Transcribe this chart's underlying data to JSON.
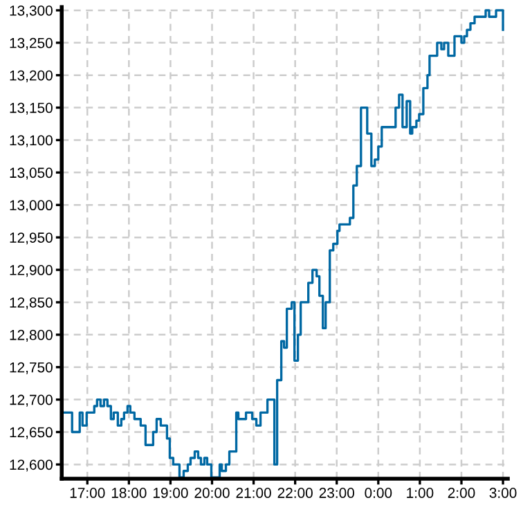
{
  "chart_data": {
    "type": "step",
    "x": [
      "2000-01-01T16:26",
      "2000-01-01T16:38",
      "2000-01-01T16:49",
      "2000-01-01T16:53",
      "2000-01-01T16:59",
      "2000-01-01T17:10",
      "2000-01-01T17:14",
      "2000-01-01T17:19",
      "2000-01-01T17:24",
      "2000-01-01T17:29",
      "2000-01-01T17:34",
      "2000-01-01T17:38",
      "2000-01-01T17:44",
      "2000-01-01T17:49",
      "2000-01-01T17:53",
      "2000-01-01T17:58",
      "2000-01-01T18:02",
      "2000-01-01T18:08",
      "2000-01-01T18:17",
      "2000-01-01T18:24",
      "2000-01-01T18:35",
      "2000-01-01T18:40",
      "2000-01-01T18:46",
      "2000-01-01T18:55",
      "2000-01-01T18:59",
      "2000-01-01T19:04",
      "2000-01-01T19:13",
      "2000-01-01T19:19",
      "2000-01-01T19:25",
      "2000-01-01T19:29",
      "2000-01-01T19:35",
      "2000-01-01T19:40",
      "2000-01-01T19:44",
      "2000-01-01T19:49",
      "2000-01-01T19:53",
      "2000-01-01T19:59",
      "2000-01-01T20:11",
      "2000-01-01T20:14",
      "2000-01-01T20:20",
      "2000-01-01T20:25",
      "2000-01-01T20:35",
      "2000-01-01T20:38",
      "2000-01-01T20:49",
      "2000-01-01T20:58",
      "2000-01-01T21:04",
      "2000-01-01T21:10",
      "2000-01-01T21:20",
      "2000-01-01T21:30",
      "2000-01-01T21:34",
      "2000-01-01T21:40",
      "2000-01-01T21:44",
      "2000-01-01T21:48",
      "2000-01-01T21:55",
      "2000-01-01T21:59",
      "2000-01-01T22:04",
      "2000-01-01T22:08",
      "2000-01-01T22:19",
      "2000-01-01T22:25",
      "2000-01-01T22:31",
      "2000-01-01T22:35",
      "2000-01-01T22:40",
      "2000-01-01T22:44",
      "2000-01-01T22:50",
      "2000-01-01T22:55",
      "2000-01-01T23:01",
      "2000-01-01T23:04",
      "2000-01-01T23:19",
      "2000-01-01T23:24",
      "2000-01-01T23:29",
      "2000-01-01T23:35",
      "2000-01-01T23:44",
      "2000-01-01T23:50",
      "2000-01-01T23:55",
      "2000-01-02T00:00",
      "2000-01-02T00:05",
      "2000-01-02T00:25",
      "2000-01-02T00:30",
      "2000-01-02T00:35",
      "2000-01-02T00:41",
      "2000-01-02T00:46",
      "2000-01-02T00:49",
      "2000-01-02T00:55",
      "2000-01-02T00:59",
      "2000-01-02T01:05",
      "2000-01-02T01:11",
      "2000-01-02T01:14",
      "2000-01-02T01:25",
      "2000-01-02T01:31",
      "2000-01-02T01:35",
      "2000-01-02T01:41",
      "2000-01-02T01:50",
      "2000-01-02T02:00",
      "2000-01-02T02:04",
      "2000-01-02T02:08",
      "2000-01-02T02:13",
      "2000-01-02T02:19",
      "2000-01-02T02:35",
      "2000-01-02T02:40",
      "2000-01-02T02:50",
      "2000-01-02T03:00"
    ],
    "series": [
      {
        "color": "#0068a3",
        "values": [
          12680,
          12650,
          12680,
          12660,
          12680,
          12690,
          12700,
          12690,
          12700,
          12690,
          12670,
          12680,
          12660,
          12670,
          12680,
          12690,
          12680,
          12670,
          12660,
          12630,
          12650,
          12670,
          12660,
          12640,
          12610,
          12600,
          12580,
          12590,
          12600,
          12610,
          12620,
          12610,
          12600,
          12610,
          12600,
          12580,
          12600,
          12590,
          12600,
          12620,
          12680,
          12670,
          12680,
          12670,
          12660,
          12680,
          12700,
          12600,
          12730,
          12790,
          12780,
          12840,
          12850,
          12760,
          12800,
          12850,
          12880,
          12900,
          12890,
          12860,
          12810,
          12850,
          12930,
          12940,
          12960,
          12970,
          12980,
          13030,
          13060,
          13150,
          13110,
          13060,
          13070,
          13090,
          13120,
          13150,
          13170,
          13120,
          13160,
          13110,
          13120,
          13130,
          13140,
          13180,
          13200,
          13230,
          13250,
          13240,
          13250,
          13230,
          13260,
          13250,
          13260,
          13270,
          13280,
          13290,
          13300,
          13290,
          13300,
          13270
        ]
      }
    ],
    "xlim": [
      "2000-01-01T16:23",
      "2000-01-02T03:07"
    ],
    "xticks": [
      {
        "value": "2000-01-01T17:00",
        "label": "17:00"
      },
      {
        "value": "2000-01-01T18:00",
        "label": "18:00"
      },
      {
        "value": "2000-01-01T19:00",
        "label": "19:00"
      },
      {
        "value": "2000-01-01T20:00",
        "label": "20:00"
      },
      {
        "value": "2000-01-01T21:00",
        "label": "21:00"
      },
      {
        "value": "2000-01-01T22:00",
        "label": "22:00"
      },
      {
        "value": "2000-01-01T23:00",
        "label": "23:00"
      },
      {
        "value": "2000-01-02T00:00",
        "label": "0:00"
      },
      {
        "value": "2000-01-02T01:00",
        "label": "1:00"
      },
      {
        "value": "2000-01-02T02:00",
        "label": "2:00"
      },
      {
        "value": "2000-01-02T03:00",
        "label": "3:00"
      }
    ],
    "ylim": [
      12578,
      13305
    ],
    "yticks": [
      {
        "value": 12600,
        "label": "12,600"
      },
      {
        "value": 12650,
        "label": "12,650"
      },
      {
        "value": 12700,
        "label": "12,700"
      },
      {
        "value": 12750,
        "label": "12,750"
      },
      {
        "value": 12800,
        "label": "12,800"
      },
      {
        "value": 12850,
        "label": "12,850"
      },
      {
        "value": 12900,
        "label": "12,900"
      },
      {
        "value": 12950,
        "label": "12,950"
      },
      {
        "value": 13000,
        "label": "13,000"
      },
      {
        "value": 13050,
        "label": "13,050"
      },
      {
        "value": 13100,
        "label": "13,100"
      },
      {
        "value": 13150,
        "label": "13,150"
      },
      {
        "value": 13200,
        "label": "13,200"
      },
      {
        "value": 13250,
        "label": "13,250"
      },
      {
        "value": 13300,
        "label": "13,300"
      }
    ],
    "grid": true,
    "line_style": "solid",
    "marker": "none"
  }
}
